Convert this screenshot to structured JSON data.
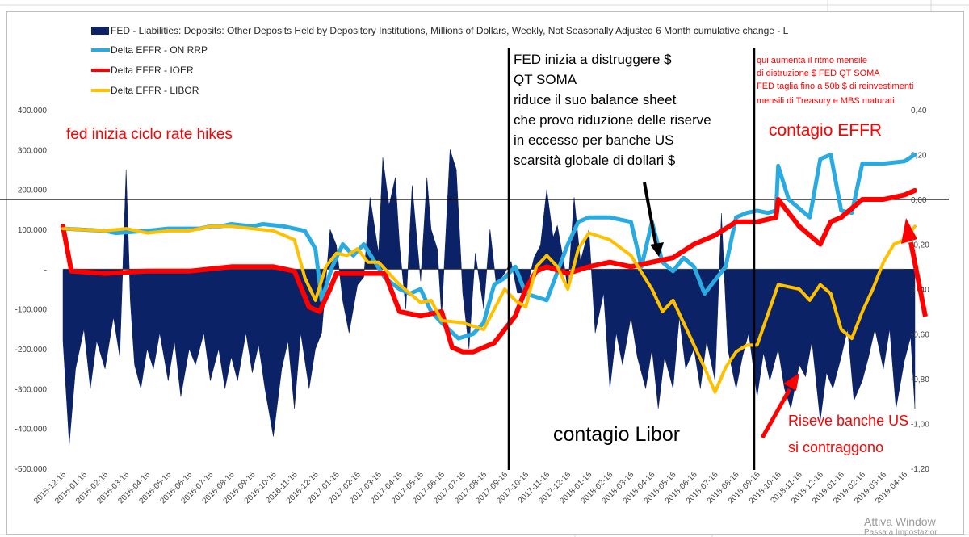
{
  "chart_data": {
    "type": "area",
    "colors": {
      "deposits": "#0c2266",
      "on_rrp": "#29abe2",
      "ioer": "#ff0000",
      "libor": "#ffc000"
    },
    "legend_position": "top-left",
    "grid": false,
    "left_axis": {
      "ylim": [
        -500000,
        400000
      ],
      "tick_labels": [
        "400.000",
        "300.000",
        "200.000",
        "100.000",
        "-",
        "-100.000",
        "-200.000",
        "-300.000",
        "-400.000",
        "-500.000"
      ]
    },
    "right_axis": {
      "ylim": [
        -1.2,
        0.4
      ],
      "tick_labels": [
        "0,40",
        "0,20",
        "0,00",
        "-0,20",
        "-0,40",
        "-0,60",
        "-0,80",
        "-1,00",
        "-1,20"
      ]
    },
    "x_tick_labels": [
      "2015-12-16",
      "2016-01-16",
      "2016-02-16",
      "2016-03-16",
      "2016-04-16",
      "2016-05-16",
      "2016-06-16",
      "2016-07-16",
      "2016-08-16",
      "2016-09-16",
      "2016-10-16",
      "2016-11-16",
      "2016-12-16",
      "2017-01-16",
      "2017-02-16",
      "2017-03-16",
      "2017-04-16",
      "2017-05-16",
      "2017-06-16",
      "2017-07-16",
      "2017-08-16",
      "2017-09-16",
      "2017-10-16",
      "2017-11-16",
      "2017-12-16",
      "2018-01-16",
      "2018-02-16",
      "2018-03-16",
      "2018-04-16",
      "2018-05-16",
      "2018-06-16",
      "2018-07-16",
      "2018-08-16",
      "2018-09-16",
      "2018-10-16",
      "2018-11-16",
      "2018-12-16",
      "2019-01-16",
      "2019-02-16",
      "2019-03-16",
      "2019-04-16"
    ],
    "series": [
      {
        "name": "FED - Liabilities: Deposits: Other Deposits Held by Depository Institutions, Millions of Dollars, Weekly, Not Seasonally Adjusted 6 Month cumulative change - L",
        "axis": "left",
        "style": "area",
        "x_index": [
          0,
          0.3,
          0.6,
          1.0,
          1.3,
          1.6,
          2.0,
          2.4,
          2.7,
          3.0,
          3.2,
          3.4,
          3.7,
          4.0,
          4.3,
          4.6,
          5.0,
          5.3,
          5.6,
          6.0,
          6.3,
          6.7,
          7.0,
          7.4,
          7.7,
          8.0,
          8.3,
          8.7,
          9.0,
          9.3,
          9.6,
          10.0,
          10.4,
          10.7,
          11.0,
          11.3,
          11.7,
          12.0,
          12.3,
          12.7,
          13.0,
          13.3,
          13.6,
          14.0,
          14.3,
          14.6,
          15.0,
          15.2,
          15.5,
          15.8,
          16.0,
          16.3,
          16.6,
          17.0,
          17.3,
          17.5,
          17.8,
          18.0,
          18.4,
          18.7,
          19.0,
          19.3,
          19.6,
          20.0,
          20.3,
          20.6,
          21.0,
          21.3,
          21.6,
          22.0,
          22.4,
          22.7,
          23.0,
          23.3,
          23.5,
          23.8,
          24.0,
          24.3,
          24.6,
          25.0,
          25.3,
          25.7,
          26.0,
          26.3,
          26.6,
          27.0,
          27.3,
          27.7,
          28.0,
          28.3,
          28.6,
          29.0,
          29.3,
          29.6,
          30.0,
          30.3,
          30.6,
          31.0,
          31.3,
          31.6,
          32.0,
          32.3,
          32.6,
          33.0,
          33.3,
          33.6,
          34.0,
          34.3,
          34.6,
          35.0,
          35.3,
          35.6,
          36.0,
          36.3,
          36.6,
          37.0,
          37.3,
          37.6,
          38.0,
          38.3,
          38.6,
          39.0,
          39.3,
          39.6,
          40.0,
          40.3,
          40.5
        ],
        "values": [
          -180000,
          -440000,
          -250000,
          -150000,
          -300000,
          -180000,
          -250000,
          -120000,
          -220000,
          250000,
          -80000,
          -240000,
          -300000,
          -200000,
          -250000,
          -160000,
          -280000,
          -180000,
          -320000,
          -200000,
          -240000,
          -160000,
          -280000,
          -200000,
          -300000,
          -220000,
          -280000,
          -160000,
          -260000,
          -190000,
          -300000,
          -420000,
          -250000,
          -180000,
          -350000,
          -160000,
          -300000,
          -200000,
          -160000,
          100000,
          60000,
          -80000,
          -160000,
          -40000,
          -20000,
          180000,
          40000,
          280000,
          160000,
          230000,
          60000,
          -100000,
          210000,
          -30000,
          230000,
          100000,
          50000,
          -120000,
          300000,
          250000,
          -60000,
          -200000,
          40000,
          -100000,
          100000,
          -40000,
          -10000,
          20000,
          -60000,
          -60000,
          30000,
          60000,
          200000,
          80000,
          110000,
          20000,
          -50000,
          180000,
          20000,
          100000,
          -160000,
          -60000,
          -300000,
          -160000,
          -240000,
          -120000,
          -220000,
          -300000,
          -200000,
          -350000,
          -220000,
          -300000,
          -120000,
          -250000,
          -200000,
          -300000,
          -180000,
          -280000,
          140000,
          -200000,
          -300000,
          -220000,
          -160000,
          -320000,
          -210000,
          -280000,
          -200000,
          -300000,
          -350000,
          -240000,
          -270000,
          -180000,
          -380000,
          -260000,
          -300000,
          -220000,
          -150000,
          -330000,
          -280000,
          -220000,
          -150000,
          -250000,
          -150000,
          -350000,
          -230000,
          -170000,
          -350000
        ]
      },
      {
        "name": "Delta EFFR - ON RRP",
        "axis": "right",
        "style": "line",
        "x_index": [
          0,
          2.0,
          2.5,
          4.0,
          5.0,
          6.5,
          7.0,
          7.5,
          8.0,
          9.0,
          9.5,
          10.5,
          11.5,
          12.0,
          12.3,
          12.8,
          13.3,
          13.8,
          14.3,
          15.3,
          16.0,
          16.5,
          17.0,
          17.5,
          18.0,
          18.8,
          19.5,
          20.0,
          20.5,
          21.0,
          21.5,
          22.0,
          23.0,
          24.0,
          24.5,
          25.0,
          26.0,
          27.0,
          27.5,
          28.0,
          28.5,
          29.0,
          29.5,
          30.0,
          30.5,
          31.0,
          31.5,
          32.0,
          32.5,
          33.0,
          33.5,
          33.9,
          34.0,
          34.5,
          35.5,
          36.0,
          36.5,
          37.0,
          37.5,
          38.0,
          38.5,
          39.0,
          40.0,
          40.5
        ],
        "values": [
          -0.13,
          -0.14,
          -0.15,
          -0.14,
          -0.13,
          -0.13,
          -0.12,
          -0.12,
          -0.11,
          -0.12,
          -0.11,
          -0.12,
          -0.14,
          -0.22,
          -0.45,
          -0.3,
          -0.2,
          -0.25,
          -0.2,
          -0.35,
          -0.4,
          -0.42,
          -0.4,
          -0.5,
          -0.55,
          -0.62,
          -0.6,
          -0.55,
          -0.38,
          -0.35,
          -0.3,
          -0.42,
          -0.45,
          -0.2,
          -0.1,
          -0.08,
          -0.08,
          -0.1,
          -0.3,
          -0.1,
          -0.28,
          -0.32,
          -0.26,
          -0.3,
          -0.42,
          -0.36,
          -0.3,
          -0.08,
          -0.06,
          -0.05,
          -0.06,
          -0.05,
          0.15,
          0.0,
          -0.08,
          0.18,
          0.2,
          -0.05,
          -0.06,
          0.16,
          0.16,
          0.16,
          0.17,
          0.2
        ]
      },
      {
        "name": "Delta EFFR - IOER",
        "axis": "right",
        "style": "line",
        "x_index": [
          0,
          0.4,
          2.0,
          4.0,
          6.0,
          8.0,
          10.0,
          11.0,
          11.7,
          12.2,
          12.7,
          13.0,
          14.0,
          15.3,
          16.0,
          17.0,
          18.0,
          18.5,
          19.0,
          19.5,
          20.5,
          21.5,
          22.0,
          22.5,
          23.0,
          24.0,
          25.0,
          26.0,
          27.0,
          28.0,
          29.0,
          30.0,
          31.0,
          32.0,
          33.0,
          33.9,
          34.0,
          35.0,
          36.0,
          36.5,
          37.0,
          38.0,
          39.0,
          40.0,
          40.5
        ],
        "values": [
          -0.12,
          -0.32,
          -0.33,
          -0.32,
          -0.32,
          -0.3,
          -0.3,
          -0.32,
          -0.48,
          -0.5,
          -0.4,
          -0.33,
          -0.33,
          -0.33,
          -0.5,
          -0.52,
          -0.5,
          -0.66,
          -0.68,
          -0.68,
          -0.64,
          -0.52,
          -0.4,
          -0.32,
          -0.3,
          -0.33,
          -0.3,
          -0.28,
          -0.3,
          -0.28,
          -0.26,
          -0.2,
          -0.16,
          -0.1,
          -0.1,
          -0.08,
          0.0,
          -0.12,
          -0.2,
          -0.1,
          -0.08,
          0.0,
          0.0,
          0.02,
          0.04
        ]
      },
      {
        "name": "Delta EFFR - LIBOR",
        "axis": "right",
        "style": "line",
        "x_index": [
          0,
          2.0,
          3.0,
          4.0,
          5.0,
          6.0,
          7.0,
          8.0,
          9.0,
          10.0,
          11.0,
          11.5,
          12.0,
          12.5,
          13.0,
          13.5,
          14.0,
          14.5,
          15.0,
          16.0,
          17.0,
          17.5,
          18.0,
          19.0,
          20.0,
          21.0,
          21.5,
          22.0,
          22.5,
          23.0,
          23.5,
          24.0,
          24.5,
          25.0,
          26.0,
          27.0,
          28.0,
          28.5,
          29.0,
          29.5,
          30.0,
          30.5,
          31.0,
          31.5,
          32.0,
          32.5,
          33.0,
          34.0,
          35.0,
          35.5,
          36.0,
          36.5,
          37.0,
          37.5,
          38.0,
          38.5,
          39.0,
          39.5,
          40.0,
          40.5
        ],
        "values": [
          -0.13,
          -0.14,
          -0.13,
          -0.15,
          -0.14,
          -0.14,
          -0.12,
          -0.12,
          -0.13,
          -0.14,
          -0.18,
          -0.35,
          -0.45,
          -0.3,
          -0.24,
          -0.25,
          -0.22,
          -0.28,
          -0.28,
          -0.38,
          -0.46,
          -0.45,
          -0.54,
          -0.55,
          -0.58,
          -0.4,
          -0.45,
          -0.48,
          -0.3,
          -0.25,
          -0.3,
          -0.4,
          -0.22,
          -0.15,
          -0.18,
          -0.25,
          -0.4,
          -0.5,
          -0.45,
          -0.55,
          -0.65,
          -0.75,
          -0.86,
          -0.75,
          -0.68,
          -0.65,
          -0.65,
          -0.38,
          -0.4,
          -0.45,
          -0.38,
          -0.42,
          -0.58,
          -0.62,
          -0.5,
          -0.4,
          -0.28,
          -0.2,
          -0.18,
          -0.12
        ]
      }
    ]
  },
  "annotations": {
    "fed_hikes": "fed inizia ciclo rate hikes",
    "qt_lines": [
      "FED inizia a distruggere $",
      "QT SOMA",
      "riduce il suo balance sheet",
      "che provo riduzione delle riserve",
      "in eccesso per banche US",
      "scarsità globale di dollari $"
    ],
    "contagio_libor": "contagio Libor",
    "contagio_effr": "contagio EFFR",
    "ritmo_lines": [
      "qui aumenta il ritmo mensile",
      "di distruzione $ FED QT SOMA",
      "FED taglia fino a 50b $ di reinvestimenti",
      "mensili di Treasury e MBS maturati"
    ],
    "riserve_lines": [
      "Riseve banche US",
      "si contraggono"
    ]
  },
  "watermark": {
    "line1": "Attiva Window",
    "line2": "Passa a Impostazior"
  }
}
